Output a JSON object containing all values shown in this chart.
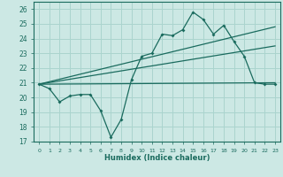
{
  "title": "",
  "xlabel": "Humidex (Indice chaleur)",
  "bg_color": "#cce8e4",
  "grid_color": "#aad4ce",
  "line_color": "#1a6b5e",
  "xlim": [
    -0.5,
    23.5
  ],
  "ylim": [
    17,
    26.5
  ],
  "xticks": [
    0,
    1,
    2,
    3,
    4,
    5,
    6,
    7,
    8,
    9,
    10,
    11,
    12,
    13,
    14,
    15,
    16,
    17,
    18,
    19,
    20,
    21,
    22,
    23
  ],
  "yticks": [
    17,
    18,
    19,
    20,
    21,
    22,
    23,
    24,
    25,
    26
  ],
  "series_main": {
    "x": [
      0,
      1,
      2,
      3,
      4,
      5,
      6,
      7,
      8,
      9,
      10,
      11,
      12,
      13,
      14,
      15,
      16,
      17,
      18,
      19,
      20,
      21,
      22,
      23
    ],
    "y": [
      20.9,
      20.6,
      19.7,
      20.1,
      20.2,
      20.2,
      19.1,
      17.3,
      18.5,
      21.2,
      22.8,
      23.0,
      24.3,
      24.2,
      24.6,
      25.8,
      25.3,
      24.3,
      24.9,
      23.8,
      22.8,
      21.0,
      20.9,
      20.9
    ]
  },
  "series_line1": {
    "x": [
      0,
      23
    ],
    "y": [
      20.9,
      21.0
    ]
  },
  "series_line2": {
    "x": [
      0,
      23
    ],
    "y": [
      20.9,
      24.8
    ]
  },
  "series_line3": {
    "x": [
      0,
      23
    ],
    "y": [
      20.9,
      23.5
    ]
  }
}
